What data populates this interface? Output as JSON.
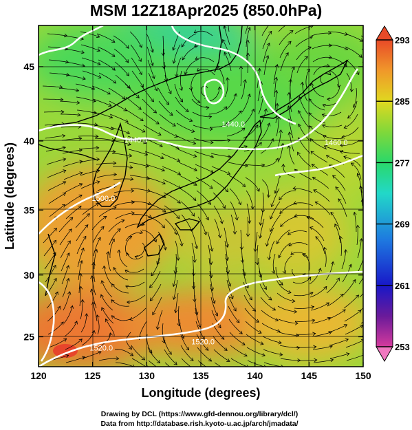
{
  "title": "MSM 12Z18Apr2025 (850.0hPa)",
  "credits": {
    "line1": "Drawing by DCL (https://www.gfd-dennou.org/library/dcl/)",
    "line2": "Data from http://database.rish.kyoto-u.ac.jp/arch/jmadata/"
  },
  "chart_data": {
    "type": "heatmap",
    "title": "MSM 12Z18Apr2025 (850.0hPa)",
    "xlabel": "Longitude (degrees)",
    "ylabel": "Latitude  (degrees)",
    "xlim": [
      120,
      150
    ],
    "ylim": [
      22.5,
      47.6
    ],
    "xticks": [
      120,
      125,
      130,
      135,
      140,
      145,
      150
    ],
    "yticks": [
      25,
      30,
      35,
      40,
      45
    ],
    "grid": true,
    "colorbar": {
      "min": 253,
      "max": 293,
      "ticks": [
        253,
        261,
        269,
        277,
        285,
        293
      ],
      "position": "right"
    },
    "contour_labels": [
      {
        "text": "1440.0",
        "lon": 129,
        "lat": 40.1
      },
      {
        "text": "1440.0",
        "lon": 138,
        "lat": 41.2
      },
      {
        "text": "1460.0",
        "lon": 147.5,
        "lat": 39.9
      },
      {
        "text": "1500.0",
        "lon": 126,
        "lat": 35.9
      },
      {
        "text": "1520.0",
        "lon": 125.8,
        "lat": 24.1
      },
      {
        "text": "1520.0",
        "lon": 135.2,
        "lat": 24.6
      }
    ]
  }
}
